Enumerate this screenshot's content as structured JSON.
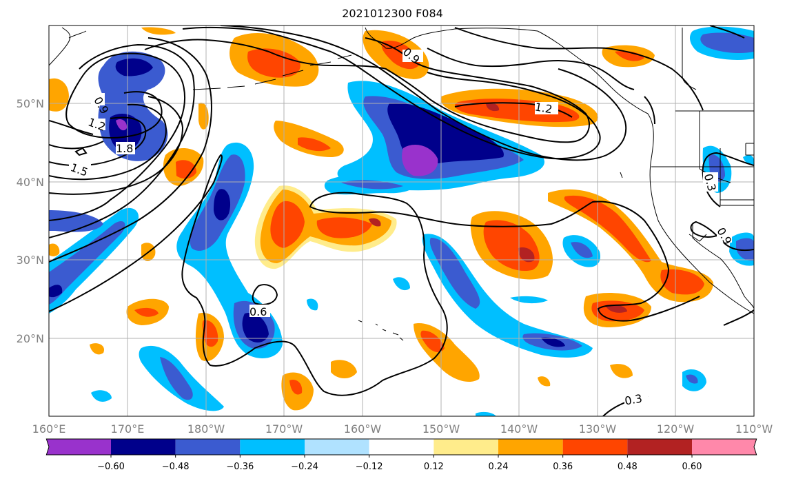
{
  "title": "2021012300 F084",
  "map": {
    "lon_labels": [
      "160°E",
      "170°E",
      "180°W",
      "170°W",
      "160°W",
      "150°W",
      "140°W",
      "130°W",
      "120°W",
      "110°W"
    ],
    "lat_labels": [
      "50°N",
      "40°N",
      "30°N",
      "20°N"
    ],
    "contour_labels": [
      "0.9",
      "1.2",
      "1.8",
      "1.5",
      "0.9",
      "1.2",
      "0.6",
      "0.3",
      "0.9",
      "0.3"
    ]
  },
  "colorbar": {
    "ticks": [
      "−0.60",
      "−0.48",
      "−0.36",
      "−0.24",
      "−0.12",
      "0.12",
      "0.24",
      "0.36",
      "0.48",
      "0.60"
    ],
    "colors": [
      "#9932cc",
      "#00008b",
      "#3b5bd0",
      "#00bfff",
      "#b0e2ff",
      "#ffffff",
      "#ffec8b",
      "#ffa500",
      "#ff4500",
      "#b22222",
      "#ff88aa"
    ]
  }
}
